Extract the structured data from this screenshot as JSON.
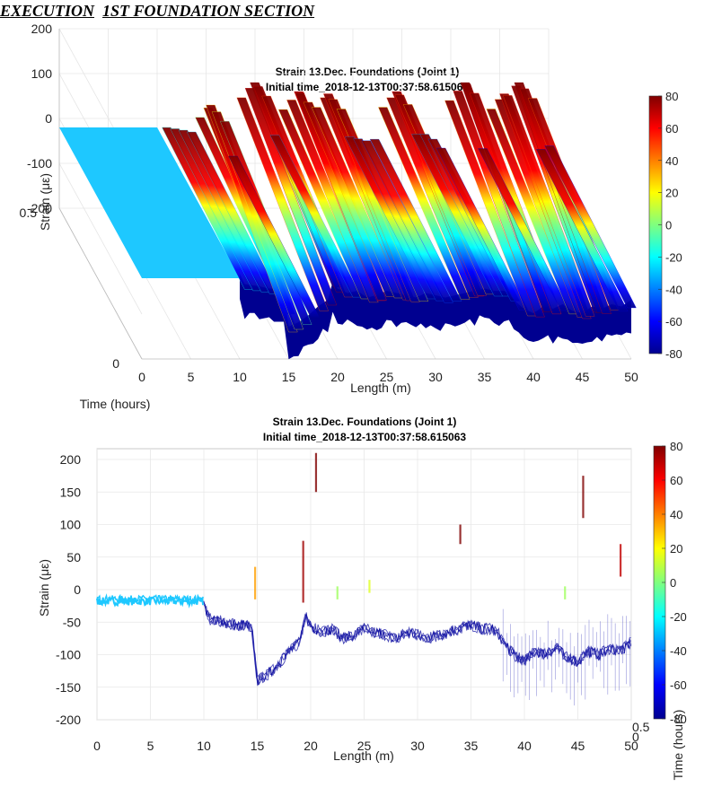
{
  "document": {
    "heading_part1": "EXECUTION",
    "heading_part2": "1ST FOUNDATION SECTION"
  },
  "chart_data": [
    {
      "type": "surface-3d",
      "title": "Strain 13.Dec. Foundations (Joint 1)",
      "subtitle": "Initial time_2018-12-13T00:37:58.615063",
      "xlabel": "Length (m)",
      "ylabel": "Time (hours)",
      "zlabel": "Strain (με)",
      "xlim": [
        0,
        50
      ],
      "ylim": [
        0,
        0.5
      ],
      "zlim": [
        -200,
        200
      ],
      "x_ticks": [
        "0",
        "5",
        "10",
        "15",
        "20",
        "25",
        "30",
        "35",
        "40",
        "45",
        "50"
      ],
      "y_ticks": [
        "0",
        "0.5"
      ],
      "z_ticks": [
        "200",
        "100",
        "0",
        "-100",
        "-200"
      ],
      "colorbar": {
        "range": [
          -80,
          80
        ],
        "ticks": [
          "80",
          "60",
          "40",
          "20",
          "0",
          "-20",
          "-40",
          "-60",
          "-80"
        ]
      },
      "profile": {
        "length_m": [
          0,
          2,
          4,
          6,
          8,
          10,
          10.5,
          12,
          13,
          14,
          14.5,
          15,
          16,
          17,
          18,
          19,
          19.5,
          20,
          21,
          22,
          23,
          24,
          25,
          26,
          27,
          28,
          29,
          30,
          31,
          32,
          33,
          34,
          35,
          36,
          37,
          37.5,
          38,
          39,
          40,
          41,
          42,
          43,
          44,
          45,
          46,
          47,
          48,
          49,
          50
        ],
        "strain": [
          -20,
          -20,
          -20,
          -20,
          -20,
          -22,
          -45,
          -50,
          -55,
          -55,
          -60,
          -140,
          -130,
          -115,
          -95,
          -80,
          -40,
          -55,
          -65,
          -60,
          -75,
          -70,
          -60,
          -65,
          -70,
          -75,
          -65,
          -70,
          -75,
          -70,
          -65,
          -60,
          -55,
          -60,
          -60,
          -65,
          -80,
          -100,
          -110,
          -95,
          -100,
          -90,
          -105,
          -110,
          -95,
          -100,
          -90,
          -95,
          -80
        ]
      },
      "spikes": [
        {
          "x": 15,
          "peak": 30
        },
        {
          "x": 19.5,
          "peak": 80
        },
        {
          "x": 24,
          "peak": 60
        },
        {
          "x": 27,
          "peak": 55
        },
        {
          "x": 34,
          "peak": 60
        },
        {
          "x": 41,
          "peak": 80
        },
        {
          "x": 45,
          "peak": 55
        },
        {
          "x": 46.5,
          "peak": 80
        }
      ]
    },
    {
      "type": "line",
      "title": "Strain 13.Dec. Foundations (Joint 1)",
      "subtitle": "Initial time_2018-12-13T00:37:58.615063",
      "xlabel": "Length (m)",
      "ylabel": "Strain (με)",
      "zlabel": "Time (hours)",
      "xlim": [
        0,
        50
      ],
      "ylim": [
        -200,
        200
      ],
      "x_ticks": [
        "0",
        "5",
        "10",
        "15",
        "20",
        "25",
        "30",
        "35",
        "40",
        "45",
        "50"
      ],
      "y_ticks": [
        "200",
        "150",
        "100",
        "50",
        "0",
        "-50",
        "-100",
        "-150",
        "-200"
      ],
      "time_ticks": [
        "0.5",
        "0"
      ],
      "colorbar": {
        "range": [
          -80,
          80
        ],
        "ticks": [
          "80",
          "60",
          "40",
          "20",
          "0",
          "-20",
          "-40",
          "-60",
          "-80"
        ]
      },
      "spikes": [
        {
          "x": 14.8,
          "peak": 35,
          "base": -15
        },
        {
          "x": 19.3,
          "peak": 75,
          "base": -20
        },
        {
          "x": 20.5,
          "peak": 210,
          "base": 150
        },
        {
          "x": 22.5,
          "peak": 5,
          "base": -15
        },
        {
          "x": 25.5,
          "peak": 15,
          "base": -5
        },
        {
          "x": 34.0,
          "peak": 100,
          "base": 70
        },
        {
          "x": 43.8,
          "peak": 5,
          "base": -15
        },
        {
          "x": 45.5,
          "peak": 175,
          "base": 110
        },
        {
          "x": 49.0,
          "peak": 70,
          "base": 20
        }
      ]
    }
  ]
}
